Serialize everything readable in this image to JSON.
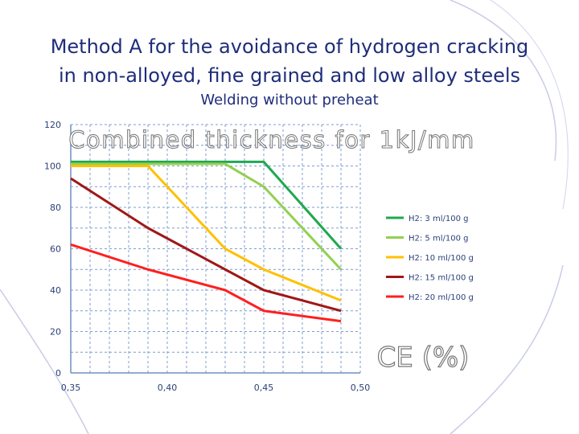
{
  "slide": {
    "title_line1": "Method A for the avoidance of hydrogen cracking",
    "title_line2": "in non-alloyed, fine grained and low alloy steels",
    "subtitle": "Welding without preheat"
  },
  "chart_data": {
    "type": "line",
    "title": "Combined thickness for 1kJ/mm",
    "xlabel": "CE (%)",
    "ylabel": "",
    "xlim": [
      0.35,
      0.5
    ],
    "ylim": [
      0,
      120
    ],
    "x_ticks": [
      "0,35",
      "0,40",
      "0,45",
      "0,50"
    ],
    "y_ticks": [
      "0",
      "20",
      "40",
      "60",
      "80",
      "100",
      "120"
    ],
    "grid": true,
    "legend_position": "right",
    "series": [
      {
        "name": "H2: 3 ml/100 g",
        "color": "#1fa84f",
        "x": [
          0.35,
          0.45,
          0.49
        ],
        "y": [
          102,
          102,
          60
        ]
      },
      {
        "name": "H2: 5 ml/100 g",
        "color": "#92d050",
        "x": [
          0.35,
          0.43,
          0.45,
          0.49
        ],
        "y": [
          101,
          101,
          90,
          50
        ]
      },
      {
        "name": "H2: 10 ml/100 g",
        "color": "#ffc000",
        "x": [
          0.35,
          0.39,
          0.4,
          0.43,
          0.45,
          0.49
        ],
        "y": [
          100,
          100,
          90,
          60,
          50,
          35
        ]
      },
      {
        "name": "H2: 15 ml/100 g",
        "color": "#a01818",
        "x": [
          0.35,
          0.39,
          0.4,
          0.43,
          0.45,
          0.49
        ],
        "y": [
          94,
          70,
          65,
          50,
          40,
          30
        ]
      },
      {
        "name": "H2: 20 ml/100 g",
        "color": "#ff1f1f",
        "x": [
          0.35,
          0.39,
          0.43,
          0.45,
          0.49
        ],
        "y": [
          62,
          50,
          40,
          30,
          25
        ]
      }
    ]
  }
}
